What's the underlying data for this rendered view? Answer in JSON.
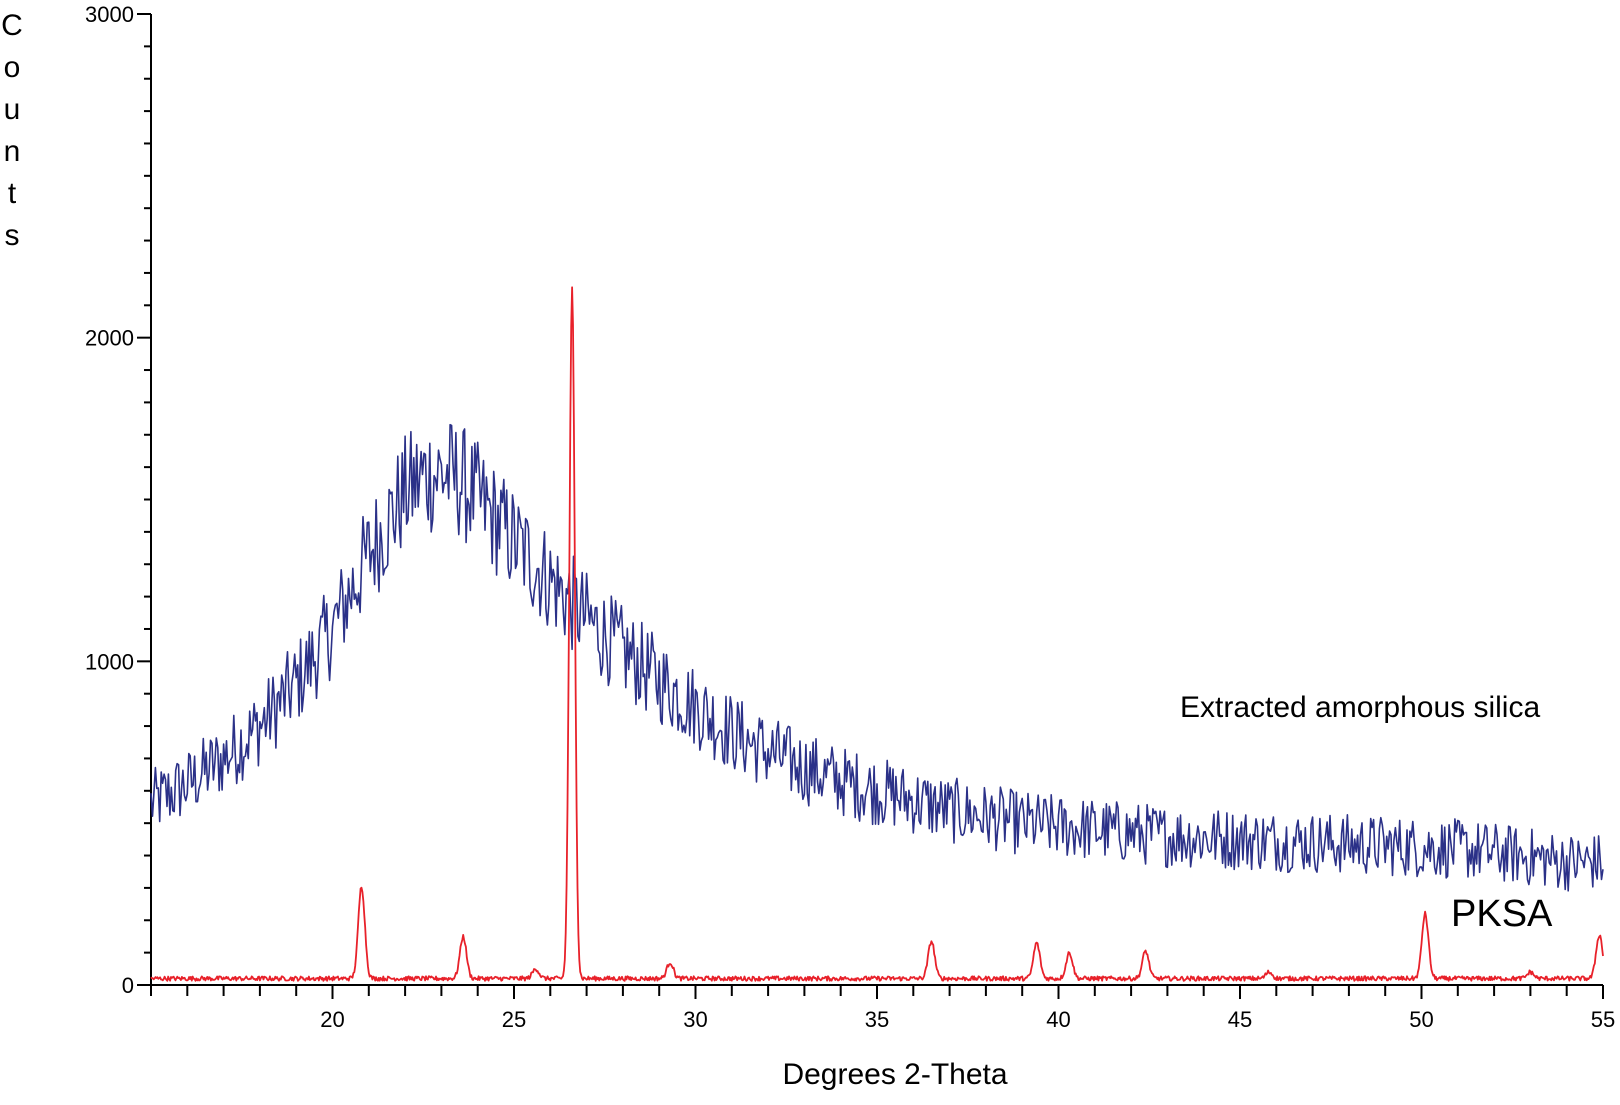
{
  "chart_data": {
    "type": "line",
    "xlabel": "Degrees 2-Theta",
    "ylabel": "Counts",
    "xlim": [
      15,
      55
    ],
    "ylim": [
      0,
      3000
    ],
    "x_ticks": [
      20,
      25,
      30,
      35,
      40,
      45,
      50,
      55
    ],
    "y_ticks": [
      0,
      1000,
      2000,
      3000
    ],
    "x_minor_step": 1,
    "y_minor_step": 100,
    "grid": false,
    "annotations": [
      {
        "text": "Extracted amorphous silica",
        "series": "Extracted amorphous silica"
      },
      {
        "text": "PKSA",
        "series": "PKSA"
      }
    ],
    "series": [
      {
        "name": "Extracted amorphous silica",
        "color": "#2b3188",
        "x": [
          15,
          16,
          17,
          18,
          19,
          20,
          21,
          22,
          22.5,
          23,
          23.5,
          24,
          25,
          26,
          27,
          28,
          29,
          30,
          31,
          32,
          33,
          34,
          35,
          36,
          37,
          38,
          39,
          40,
          41,
          42,
          43,
          44,
          45,
          46,
          47,
          48,
          49,
          50,
          51,
          52,
          53,
          54,
          55
        ],
        "y": [
          560,
          620,
          700,
          800,
          930,
          1100,
          1330,
          1520,
          1570,
          1580,
          1560,
          1500,
          1370,
          1250,
          1130,
          1030,
          940,
          860,
          780,
          720,
          670,
          630,
          600,
          570,
          540,
          520,
          500,
          490,
          480,
          470,
          460,
          455,
          450,
          445,
          440,
          435,
          430,
          425,
          420,
          410,
          395,
          380,
          380
        ]
      },
      {
        "name": "PKSA",
        "color": "#e8212a",
        "baseline": 20,
        "peaks": [
          {
            "x": 20.8,
            "y": 305
          },
          {
            "x": 23.6,
            "y": 150
          },
          {
            "x": 25.6,
            "y": 50
          },
          {
            "x": 26.6,
            "y": 2150
          },
          {
            "x": 29.3,
            "y": 70
          },
          {
            "x": 36.5,
            "y": 135
          },
          {
            "x": 39.4,
            "y": 130
          },
          {
            "x": 40.3,
            "y": 100
          },
          {
            "x": 42.4,
            "y": 105
          },
          {
            "x": 45.8,
            "y": 40
          },
          {
            "x": 50.1,
            "y": 220
          },
          {
            "x": 53.0,
            "y": 40
          },
          {
            "x": 54.9,
            "y": 155
          }
        ]
      }
    ]
  },
  "labels": {
    "ylabel_chars": [
      "C",
      "o",
      "u",
      "n",
      "t",
      "s"
    ]
  }
}
